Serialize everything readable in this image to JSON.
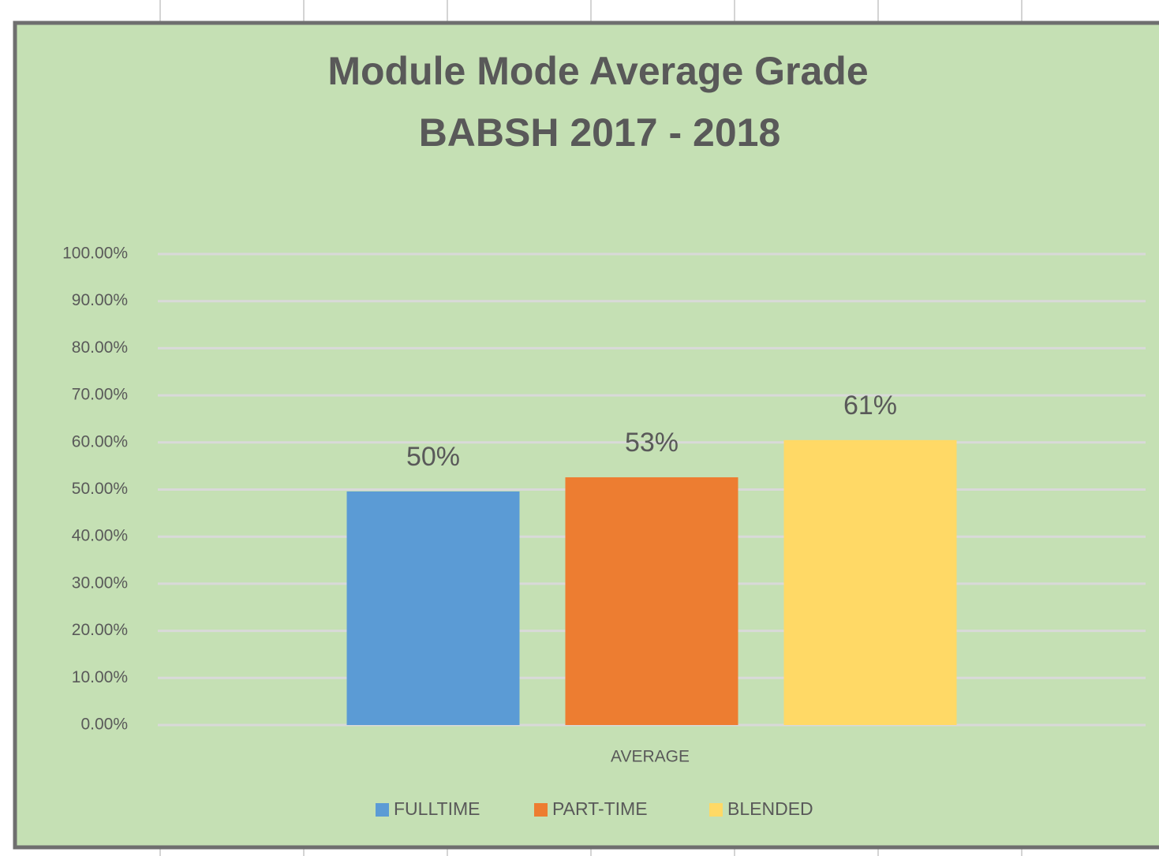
{
  "chart_data": {
    "type": "bar",
    "title": [
      "Module Mode Average Grade",
      "BABSH 2017 - 2018"
    ],
    "categories": [
      "AVERAGE"
    ],
    "series": [
      {
        "name": "FULLTIME",
        "color": "#5b9bd5",
        "values": [
          49.6
        ],
        "value_labels": [
          "50%"
        ]
      },
      {
        "name": "PART-TIME",
        "color": "#ed7d31",
        "values": [
          52.6
        ],
        "value_labels": [
          "53%"
        ]
      },
      {
        "name": "BLENDED",
        "color": "#ffd966",
        "values": [
          60.5
        ],
        "value_labels": [
          "61%"
        ]
      }
    ],
    "ylim": [
      0,
      100
    ],
    "yticks": [
      {
        "value": 0,
        "label": "0.00%"
      },
      {
        "value": 10,
        "label": "10.00%"
      },
      {
        "value": 20,
        "label": "20.00%"
      },
      {
        "value": 30,
        "label": "30.00%"
      },
      {
        "value": 40,
        "label": "40.00%"
      },
      {
        "value": 50,
        "label": "50.00%"
      },
      {
        "value": 60,
        "label": "60.00%"
      },
      {
        "value": 70,
        "label": "70.00%"
      },
      {
        "value": 80,
        "label": "80.00%"
      },
      {
        "value": 90,
        "label": "90.00%"
      },
      {
        "value": 100,
        "label": "100.00%"
      }
    ],
    "grid": true,
    "legend": "bottom"
  }
}
